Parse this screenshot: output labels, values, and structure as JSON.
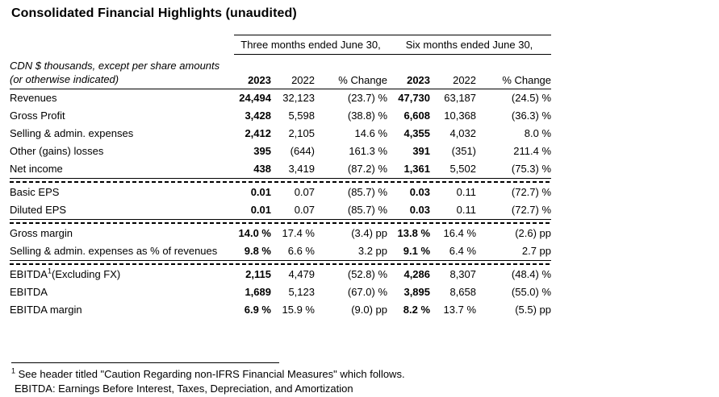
{
  "page": {
    "title": "Consolidated Financial Highlights (unaudited)"
  },
  "table": {
    "period_groups": [
      "Three months ended June 30,",
      "Six months ended June 30,"
    ],
    "units_note_line1": "CDN $ thousands, except per share amounts",
    "units_note_line2": "(or otherwise indicated)",
    "column_headers": [
      "2023",
      "2022",
      "% Change",
      "2023",
      "2022",
      "% Change"
    ],
    "sections": [
      {
        "rows": [
          {
            "label": "Revenues",
            "values": [
              "24,494",
              "32,123",
              "(23.7) %",
              "47,730",
              "63,187",
              "(24.5) %"
            ]
          },
          {
            "label": "Gross Profit",
            "values": [
              "3,428",
              "5,598",
              "(38.8) %",
              "6,608",
              "10,368",
              "(36.3) %"
            ]
          },
          {
            "label": "Selling & admin. expenses",
            "values": [
              "2,412",
              "2,105",
              "14.6 %",
              "4,355",
              "4,032",
              "8.0 %"
            ]
          },
          {
            "label": "Other (gains) losses",
            "values": [
              "395",
              "(644)",
              "161.3 %",
              "391",
              "(351)",
              "211.4 %"
            ]
          },
          {
            "label": "Net income",
            "values": [
              "438",
              "3,419",
              "(87.2) %",
              "1,361",
              "5,502",
              "(75.3) %"
            ]
          }
        ]
      },
      {
        "rows": [
          {
            "label": "Basic EPS",
            "values": [
              "0.01",
              "0.07",
              "(85.7) %",
              "0.03",
              "0.11",
              "(72.7) %"
            ]
          },
          {
            "label": "Diluted EPS",
            "values": [
              "0.01",
              "0.07",
              "(85.7) %",
              "0.03",
              "0.11",
              "(72.7) %"
            ]
          }
        ]
      },
      {
        "rows": [
          {
            "label": "Gross margin",
            "values": [
              "14.0 %",
              "17.4 %",
              "(3.4) pp",
              "13.8 %",
              "16.4 %",
              "(2.6) pp"
            ]
          },
          {
            "label": "Selling & admin. expenses as % of revenues",
            "values": [
              "9.8 %",
              "6.6 %",
              "3.2 pp",
              "9.1 %",
              "6.4 %",
              "2.7 pp"
            ]
          }
        ]
      },
      {
        "rows": [
          {
            "label": "EBITDA",
            "label_sup": "1",
            "label_suffix": "(Excluding FX)",
            "values": [
              "2,115",
              "4,479",
              "(52.8) %",
              "4,286",
              "8,307",
              "(48.4) %"
            ]
          },
          {
            "label": "EBITDA",
            "values": [
              "1,689",
              "5,123",
              "(67.0) %",
              "3,895",
              "8,658",
              "(55.0) %"
            ]
          },
          {
            "label": "EBITDA margin",
            "values": [
              "6.9 %",
              "15.9 %",
              "(9.0) pp",
              "8.2 %",
              "13.7 %",
              "(5.5) pp"
            ]
          }
        ]
      }
    ]
  },
  "footnotes": {
    "note1_sup": "1",
    "note1_text": "See header titled \"Caution Regarding non-IFRS Financial Measures\" which follows.",
    "note2_text": "EBITDA: Earnings Before Interest, Taxes, Depreciation, and Amortization"
  },
  "colors": {
    "text": "#000000",
    "background": "#ffffff"
  }
}
